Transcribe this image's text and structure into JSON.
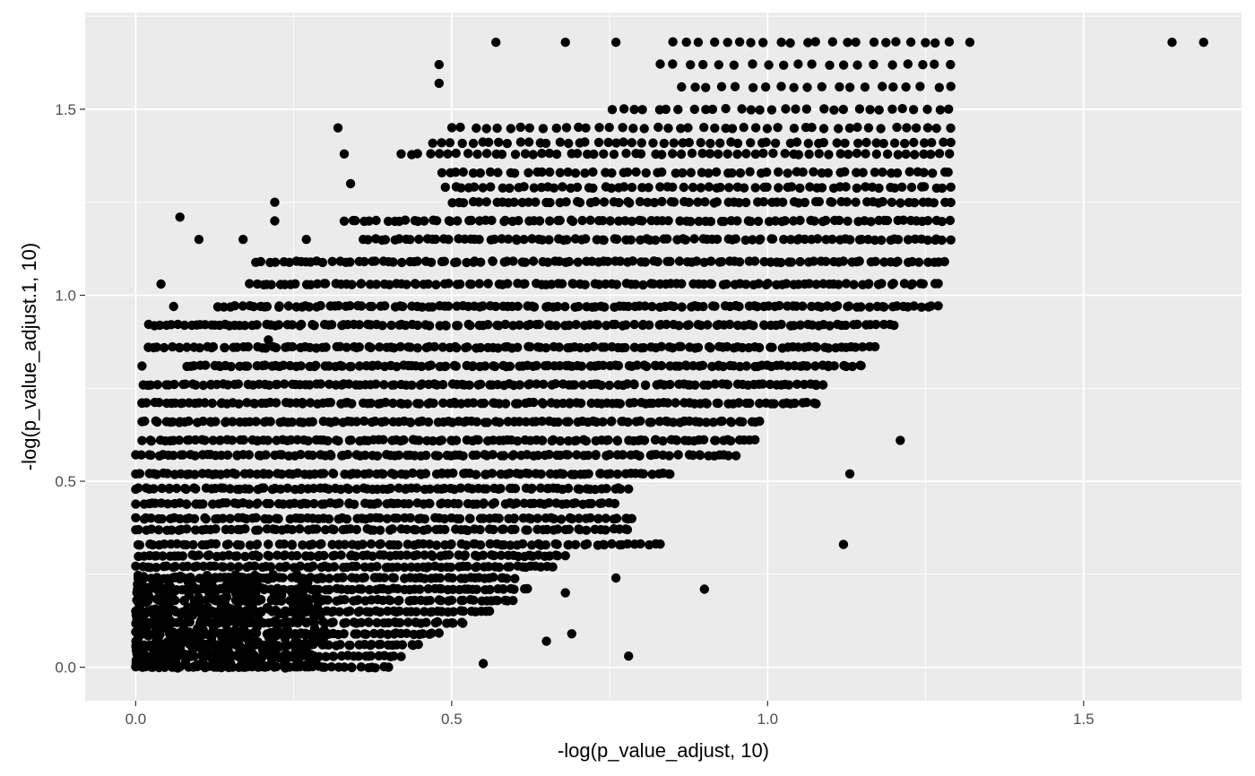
{
  "chart_data": {
    "type": "scatter",
    "title": "",
    "xlabel": "-log(p_value_adjust, 10)",
    "ylabel": "-log(p_value_adjust.1, 10)",
    "xlim": [
      -0.08,
      1.75
    ],
    "ylim": [
      -0.09,
      1.76
    ],
    "x_ticks": [
      0.0,
      0.5,
      1.0,
      1.5
    ],
    "x_tick_labels": [
      "0.0",
      "0.5",
      "1.0",
      "1.5"
    ],
    "y_ticks": [
      0.0,
      0.5,
      1.0,
      1.5
    ],
    "y_tick_labels": [
      "0.0",
      "0.5",
      "1.0",
      "1.5"
    ],
    "grid": true,
    "legend": "none",
    "colors": {
      "panel": "#ebebeb",
      "grid": "#ffffff",
      "points": "#000000"
    },
    "points": [
      [
        1.64,
        1.68
      ],
      [
        1.69,
        1.68
      ],
      [
        1.32,
        1.68
      ],
      [
        0.57,
        1.68
      ],
      [
        0.68,
        1.68
      ],
      [
        0.76,
        1.68
      ],
      [
        0.48,
        1.62
      ],
      [
        0.48,
        1.57
      ],
      [
        0.32,
        1.45
      ],
      [
        0.33,
        1.38
      ],
      [
        0.34,
        1.3
      ],
      [
        0.22,
        1.25
      ],
      [
        0.22,
        1.2
      ],
      [
        0.07,
        1.21
      ],
      [
        0.1,
        1.15
      ],
      [
        0.17,
        1.15
      ],
      [
        0.27,
        1.15
      ],
      [
        0.04,
        1.03
      ],
      [
        0.06,
        0.97
      ],
      [
        0.12,
        0.92
      ],
      [
        0.02,
        0.86
      ],
      [
        0.01,
        0.81
      ],
      [
        0.01,
        0.71
      ],
      [
        0.07,
        0.66
      ],
      [
        1.21,
        0.61
      ],
      [
        1.13,
        0.52
      ],
      [
        1.12,
        0.33
      ],
      [
        0.9,
        0.21
      ],
      [
        0.78,
        0.03
      ],
      [
        0.65,
        0.07
      ],
      [
        0.55,
        0.01
      ],
      [
        0.4,
        0.0
      ],
      [
        0.69,
        0.09
      ],
      [
        0.76,
        0.24
      ],
      [
        0.68,
        0.2
      ],
      [
        0.21,
        0.88
      ]
    ],
    "bands": [
      {
        "y": 1.68,
        "x": [
          0.85,
          1.29
        ],
        "n": 22
      },
      {
        "y": 1.62,
        "x": [
          0.83,
          1.29
        ],
        "n": 20
      },
      {
        "y": 1.56,
        "x": [
          0.86,
          1.29
        ],
        "n": 20
      },
      {
        "y": 1.5,
        "x": [
          0.75,
          1.29
        ],
        "n": 30
      },
      {
        "y": 1.45,
        "x": [
          0.5,
          1.29
        ],
        "n": 45
      },
      {
        "y": 1.41,
        "x": [
          0.47,
          1.29
        ],
        "n": 55
      },
      {
        "y": 1.38,
        "x": [
          0.42,
          1.29
        ],
        "n": 60
      },
      {
        "y": 1.33,
        "x": [
          0.48,
          1.29
        ],
        "n": 60
      },
      {
        "y": 1.29,
        "x": [
          0.49,
          1.29
        ],
        "n": 65
      },
      {
        "y": 1.25,
        "x": [
          0.5,
          1.29
        ],
        "n": 70
      },
      {
        "y": 1.2,
        "x": [
          0.33,
          1.29
        ],
        "n": 90
      },
      {
        "y": 1.15,
        "x": [
          0.36,
          1.29
        ],
        "n": 95
      },
      {
        "y": 1.09,
        "x": [
          0.19,
          1.28
        ],
        "n": 110
      },
      {
        "y": 1.03,
        "x": [
          0.18,
          1.27
        ],
        "n": 115
      },
      {
        "y": 0.97,
        "x": [
          0.13,
          1.27
        ],
        "n": 125
      },
      {
        "y": 0.92,
        "x": [
          0.02,
          1.2
        ],
        "n": 130
      },
      {
        "y": 0.86,
        "x": [
          0.02,
          1.17
        ],
        "n": 130
      },
      {
        "y": 0.81,
        "x": [
          0.08,
          1.15
        ],
        "n": 130
      },
      {
        "y": 0.76,
        "x": [
          0.01,
          1.09
        ],
        "n": 125
      },
      {
        "y": 0.71,
        "x": [
          0.01,
          1.08
        ],
        "n": 125
      },
      {
        "y": 0.66,
        "x": [
          0.01,
          0.99
        ],
        "n": 115
      },
      {
        "y": 0.61,
        "x": [
          0.01,
          0.98
        ],
        "n": 115
      },
      {
        "y": 0.57,
        "x": [
          0.0,
          0.95
        ],
        "n": 110
      },
      {
        "y": 0.52,
        "x": [
          0.0,
          0.85
        ],
        "n": 100
      },
      {
        "y": 0.48,
        "x": [
          0.0,
          0.78
        ],
        "n": 95
      },
      {
        "y": 0.44,
        "x": [
          0.0,
          0.76
        ],
        "n": 90
      },
      {
        "y": 0.4,
        "x": [
          0.0,
          0.79
        ],
        "n": 90
      },
      {
        "y": 0.37,
        "x": [
          0.0,
          0.78
        ],
        "n": 85
      },
      {
        "y": 0.33,
        "x": [
          0.0,
          0.83
        ],
        "n": 90
      },
      {
        "y": 0.3,
        "x": [
          0.0,
          0.68
        ],
        "n": 80
      },
      {
        "y": 0.27,
        "x": [
          0.0,
          0.66
        ],
        "n": 80
      },
      {
        "y": 0.24,
        "x": [
          0.0,
          0.6
        ],
        "n": 75
      },
      {
        "y": 0.21,
        "x": [
          0.0,
          0.62
        ],
        "n": 75
      },
      {
        "y": 0.18,
        "x": [
          0.0,
          0.6
        ],
        "n": 75
      },
      {
        "y": 0.15,
        "x": [
          0.0,
          0.56
        ],
        "n": 70
      },
      {
        "y": 0.12,
        "x": [
          0.0,
          0.52
        ],
        "n": 65
      },
      {
        "y": 0.09,
        "x": [
          0.0,
          0.48
        ],
        "n": 60
      },
      {
        "y": 0.06,
        "x": [
          0.0,
          0.45
        ],
        "n": 55
      },
      {
        "y": 0.03,
        "x": [
          0.0,
          0.42
        ],
        "n": 50
      },
      {
        "y": 0.0,
        "x": [
          0.0,
          0.4
        ],
        "n": 45
      }
    ],
    "dense_cloud": {
      "x": [
        0.0,
        0.3
      ],
      "y": [
        0.0,
        0.25
      ],
      "n": 500
    }
  }
}
